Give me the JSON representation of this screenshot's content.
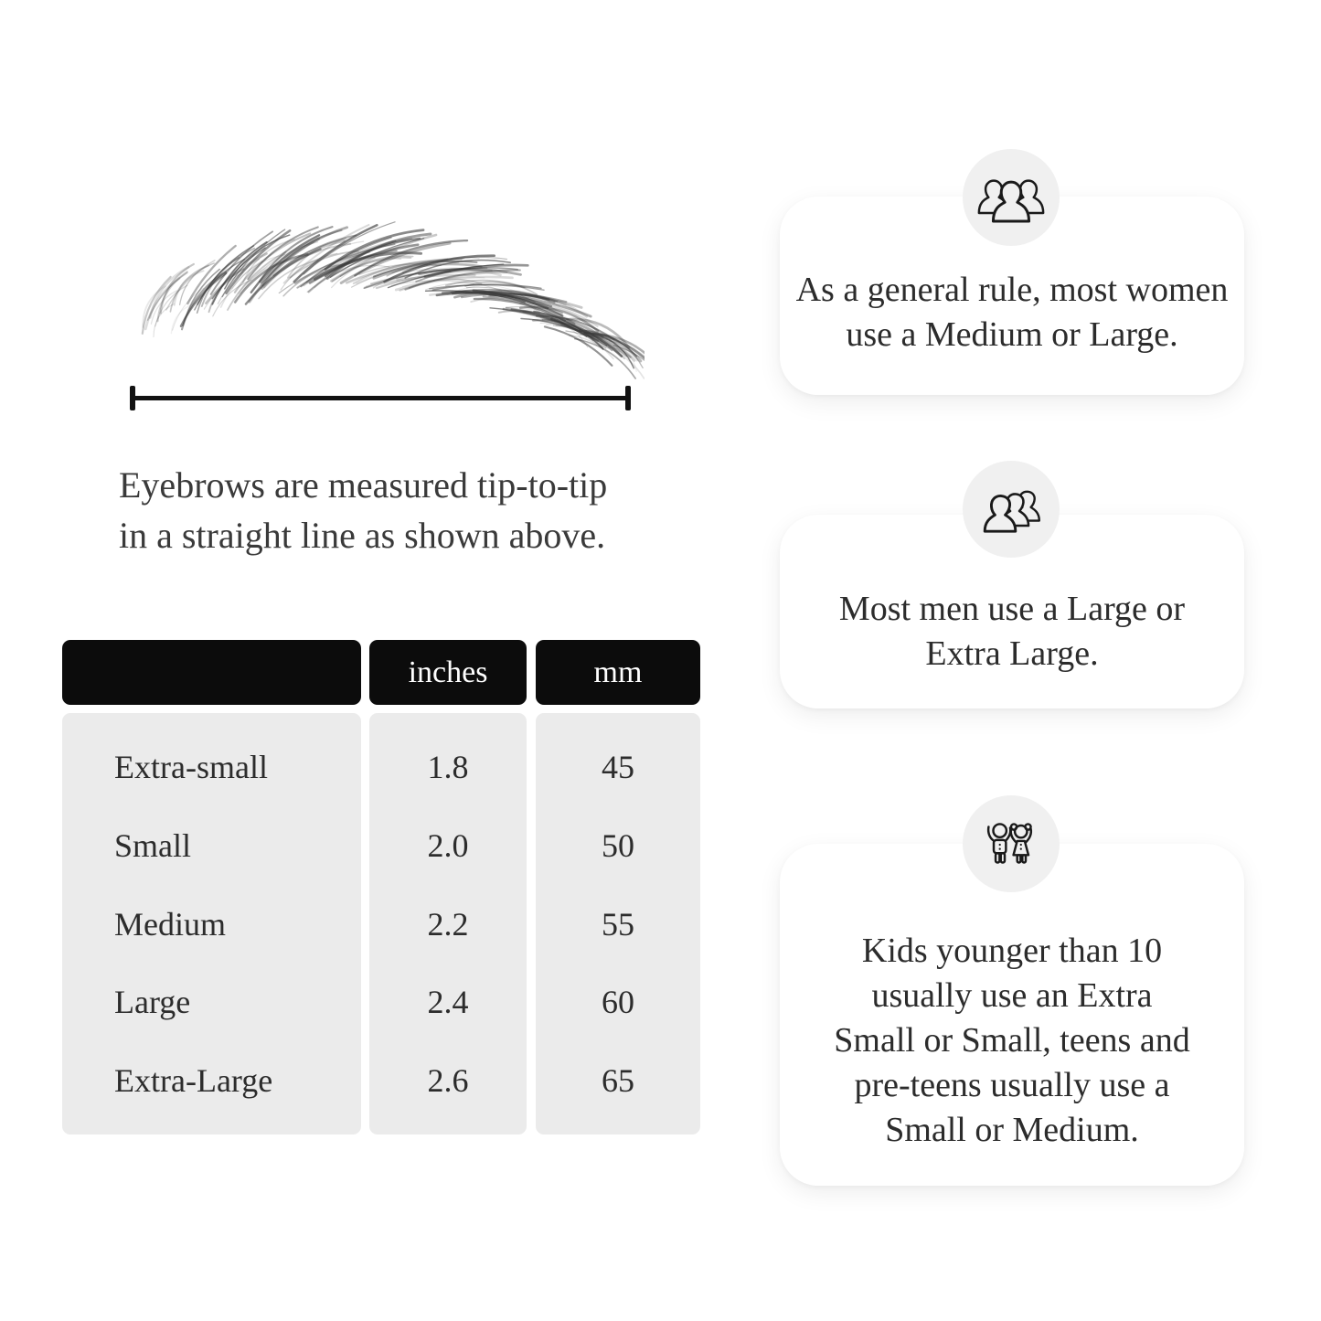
{
  "page": {
    "background": "#ffffff"
  },
  "diagram": {
    "caption": "Eyebrows are measured tip-to-tip\nin a straight line as shown above.",
    "measure_line_color": "#121212"
  },
  "size_table": {
    "columns": [
      "",
      "inches",
      "mm"
    ],
    "rows": [
      {
        "label": "Extra-small",
        "inches": "1.8",
        "mm": "45"
      },
      {
        "label": "Small",
        "inches": "2.0",
        "mm": "50"
      },
      {
        "label": "Medium",
        "inches": "2.2",
        "mm": "55"
      },
      {
        "label": "Large",
        "inches": "2.4",
        "mm": "60"
      },
      {
        "label": "Extra-Large",
        "inches": "2.6",
        "mm": "65"
      }
    ],
    "header_bg": "#0c0c0c",
    "header_text_color": "#ffffff",
    "body_bg": "#ebebeb"
  },
  "cards": [
    {
      "icon": "women-group-icon",
      "text": "As a general rule, most women\nuse a Medium or Large."
    },
    {
      "icon": "men-group-icon",
      "text": "Most men use a Large or\nExtra Large."
    },
    {
      "icon": "kids-icon",
      "text": "Kids younger than 10\nusually use an Extra\nSmall or Small, teens and\npre-teens usually use a\nSmall or Medium."
    }
  ]
}
